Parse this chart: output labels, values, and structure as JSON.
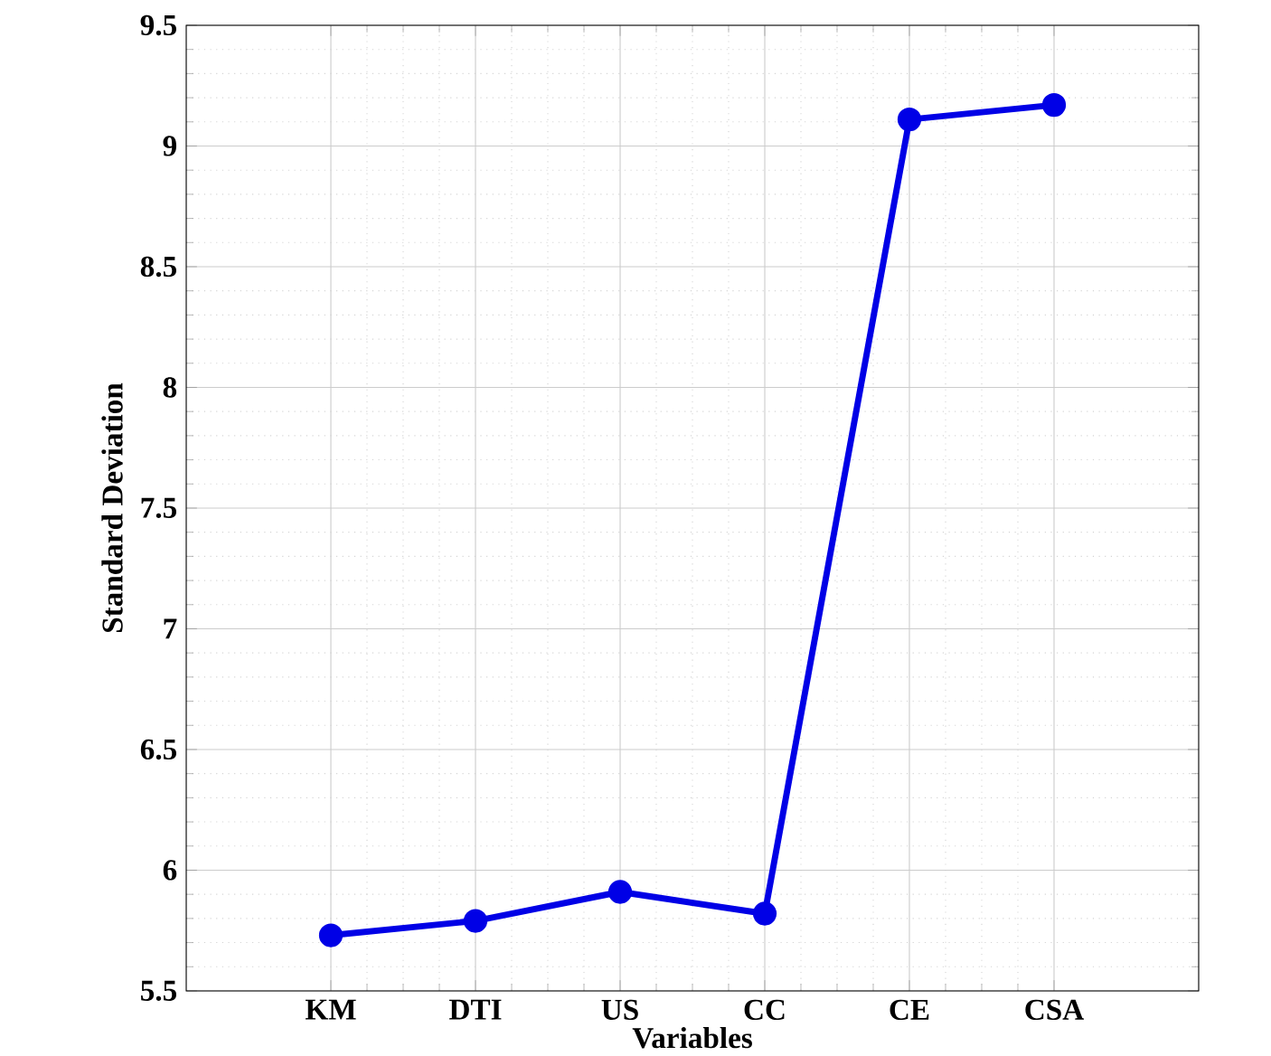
{
  "chart_data": {
    "type": "line",
    "xlabel": "Variables",
    "ylabel": "Standard Deviation",
    "categories": [
      "KM",
      "DTI",
      "US",
      "CC",
      "CE",
      "CSA"
    ],
    "values": [
      5.73,
      5.79,
      5.91,
      5.82,
      9.11,
      9.17
    ],
    "color": "#0000e6",
    "marker": "circle",
    "line_style": "solid",
    "grid": true,
    "ylim": [
      5.5,
      9.5
    ],
    "yticks": [
      5.5,
      6,
      6.5,
      7,
      7.5,
      8,
      8.5,
      9,
      9.5
    ]
  }
}
